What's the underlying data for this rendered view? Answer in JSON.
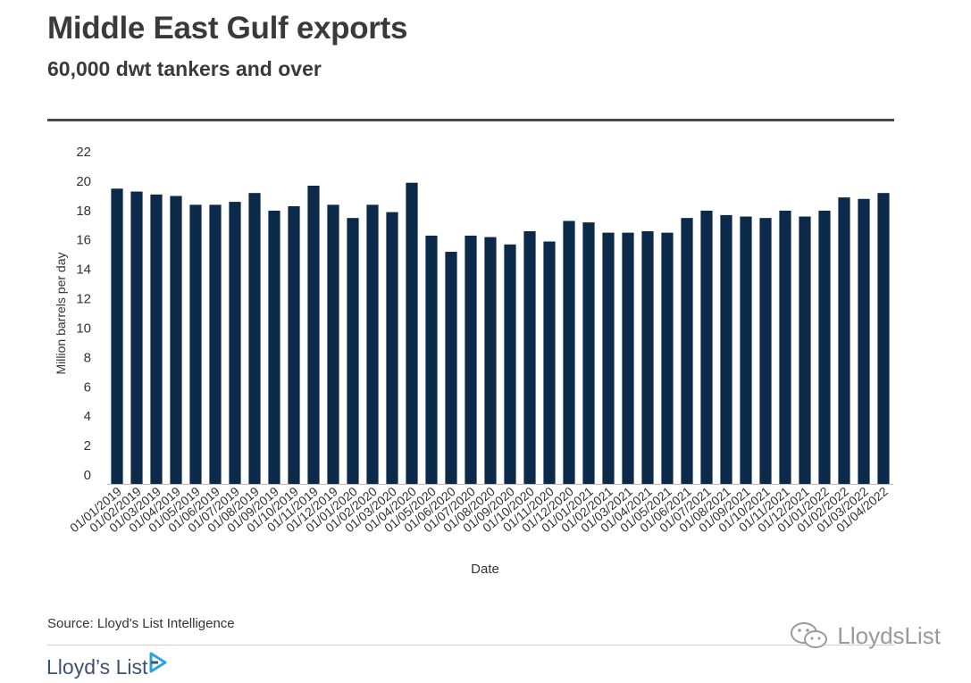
{
  "header": {
    "title": "Middle East Gulf exports",
    "subtitle": "60,000 dwt tankers and over"
  },
  "footer": {
    "source": "Source: Lloyd's List Intelligence",
    "logo_text": "Lloyd’s List",
    "watermark_text": "LloydsList"
  },
  "colors": {
    "bar": "#0b2a4a",
    "text": "#333333",
    "logo": "#3d5270",
    "logo_accent": "#2aa3dc"
  },
  "icons": {
    "logo_mark": "play-triangle-icon",
    "watermark_mark": "wechat-icon"
  },
  "chart_data": {
    "type": "bar",
    "title": "",
    "xlabel": "Date",
    "ylabel": "Million barrels per day",
    "ylim": [
      0,
      22
    ],
    "yticks": [
      0,
      2,
      4,
      6,
      8,
      10,
      12,
      14,
      16,
      18,
      20,
      22
    ],
    "grid": false,
    "legend": "none",
    "categories": [
      "01/01/2019",
      "01/02/2019",
      "01/03/2019",
      "01/04/2019",
      "01/05/2019",
      "01/06/2019",
      "01/07/2019",
      "01/08/2019",
      "01/09/2019",
      "01/10/2019",
      "01/11/2019",
      "01/12/2019",
      "01/01/2020",
      "01/02/2020",
      "01/03/2020",
      "01/04/2020",
      "01/05/2020",
      "01/06/2020",
      "01/07/2020",
      "01/08/2020",
      "01/09/2020",
      "01/10/2020",
      "01/11/2020",
      "01/12/2020",
      "01/01/2021",
      "01/02/2021",
      "01/03/2021",
      "01/04/2021",
      "01/05/2021",
      "01/06/2021",
      "01/07/2021",
      "01/08/2021",
      "01/09/2021",
      "01/10/2021",
      "01/11/2021",
      "01/12/2021",
      "01/01/2022",
      "01/02/2022",
      "01/03/2022",
      "01/04/2022"
    ],
    "values": [
      20.1,
      19.9,
      19.7,
      19.6,
      19.0,
      19.0,
      19.2,
      19.8,
      18.6,
      18.9,
      20.3,
      19.0,
      18.1,
      19.0,
      18.5,
      20.5,
      16.9,
      15.8,
      16.9,
      16.8,
      16.3,
      17.2,
      16.5,
      17.9,
      17.8,
      17.1,
      17.1,
      17.2,
      17.1,
      18.1,
      18.6,
      18.3,
      18.2,
      18.1,
      18.6,
      18.2,
      18.6,
      19.5,
      19.4,
      19.8
    ]
  }
}
